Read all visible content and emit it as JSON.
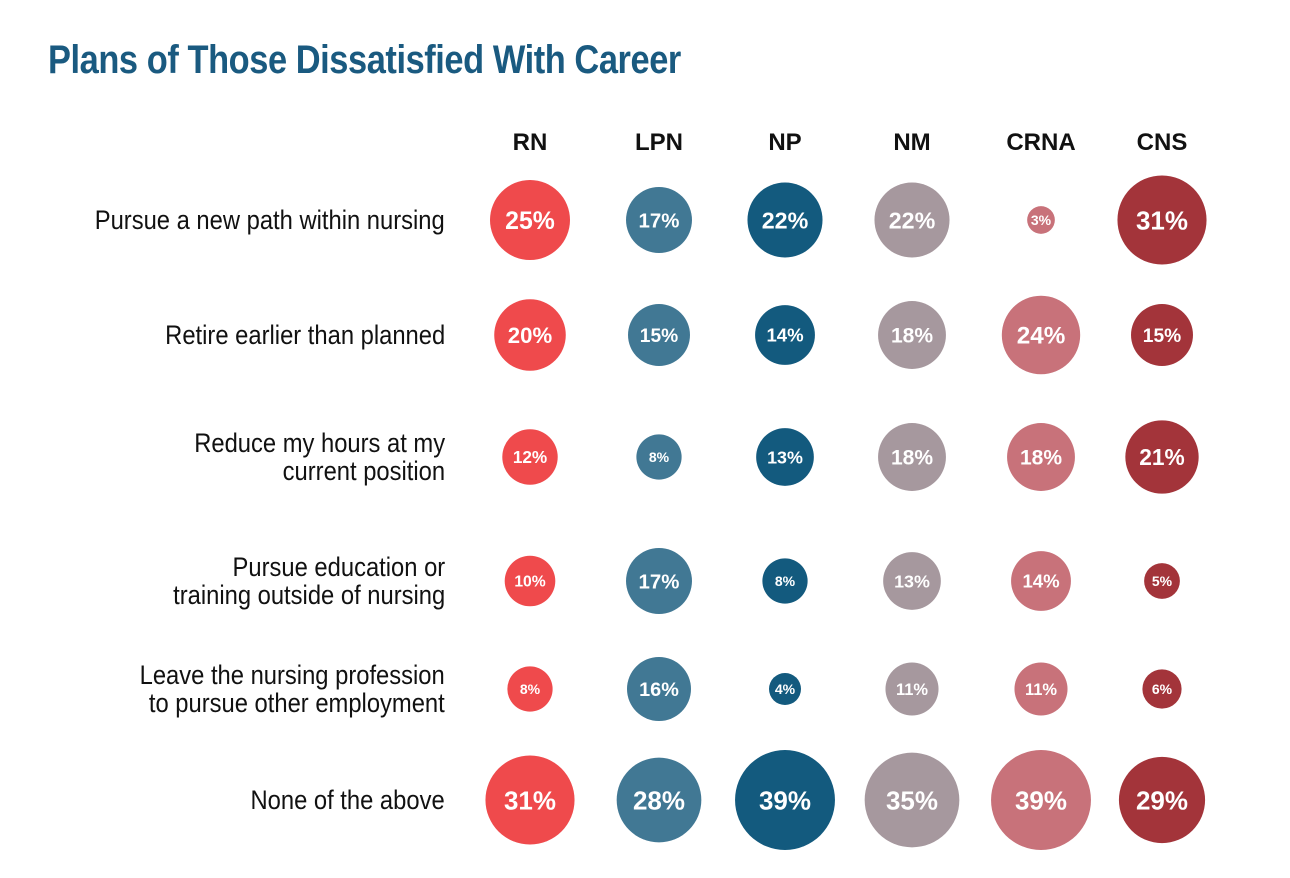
{
  "chart_data": {
    "type": "bubble-matrix",
    "title": "Plans of Those Dissatisfied With Career",
    "columns": [
      "RN",
      "LPN",
      "NP",
      "NM",
      "CRNA",
      "CNS"
    ],
    "rows": [
      "Pursue a new path within nursing",
      "Retire earlier than planned",
      "Reduce my hours at my\ncurrent position",
      "Pursue education or\ntraining outside of nursing",
      "Leave the nursing profession\nto pursue other employment",
      "None of the above"
    ],
    "values": [
      [
        25,
        17,
        22,
        22,
        3,
        31
      ],
      [
        20,
        15,
        14,
        18,
        24,
        15
      ],
      [
        12,
        8,
        13,
        18,
        18,
        21
      ],
      [
        10,
        17,
        8,
        13,
        14,
        5
      ],
      [
        8,
        16,
        4,
        11,
        11,
        6
      ],
      [
        31,
        28,
        39,
        35,
        39,
        29
      ]
    ],
    "unit": "%",
    "colors": [
      "#ef4a4c",
      "#417894",
      "#135a7e",
      "#a6989e",
      "#c8727a",
      "#a3343a"
    ],
    "title_color": "#1a5a80"
  }
}
